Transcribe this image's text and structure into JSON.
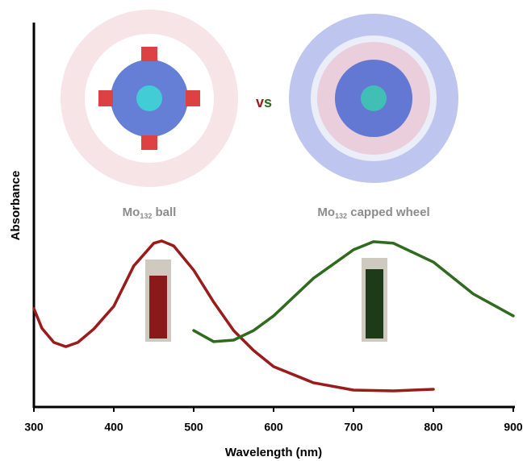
{
  "chart_data": {
    "type": "line",
    "x_label": "Wavelength (nm)",
    "y_label": "Absorbance",
    "xlim": [
      300,
      900
    ],
    "xticks": [
      300,
      400,
      500,
      600,
      700,
      800,
      900
    ],
    "ylim": [
      0,
      1
    ],
    "series": [
      {
        "name": {
          "base": "Mo",
          "sub": "132",
          "rest": " ball"
        },
        "color": "#9b1b1b",
        "x": [
          300,
          310,
          325,
          340,
          355,
          375,
          400,
          425,
          450,
          460,
          475,
          500,
          525,
          550,
          575,
          600,
          650,
          700,
          750,
          800
        ],
        "values": [
          0.256,
          0.205,
          0.168,
          0.157,
          0.168,
          0.203,
          0.262,
          0.367,
          0.426,
          0.432,
          0.419,
          0.356,
          0.273,
          0.199,
          0.147,
          0.105,
          0.063,
          0.044,
          0.042,
          0.046
        ]
      },
      {
        "name": {
          "base": "Mo",
          "sub": "132",
          "rest": " capped wheel"
        },
        "color": "#2f6a1e",
        "x": [
          500,
          525,
          550,
          575,
          600,
          650,
          700,
          725,
          750,
          800,
          850,
          900
        ],
        "values": [
          0.199,
          0.17,
          0.174,
          0.199,
          0.237,
          0.335,
          0.409,
          0.43,
          0.426,
          0.377,
          0.294,
          0.237
        ]
      }
    ],
    "vs_label": {
      "parts": [
        "v",
        "s"
      ]
    }
  }
}
